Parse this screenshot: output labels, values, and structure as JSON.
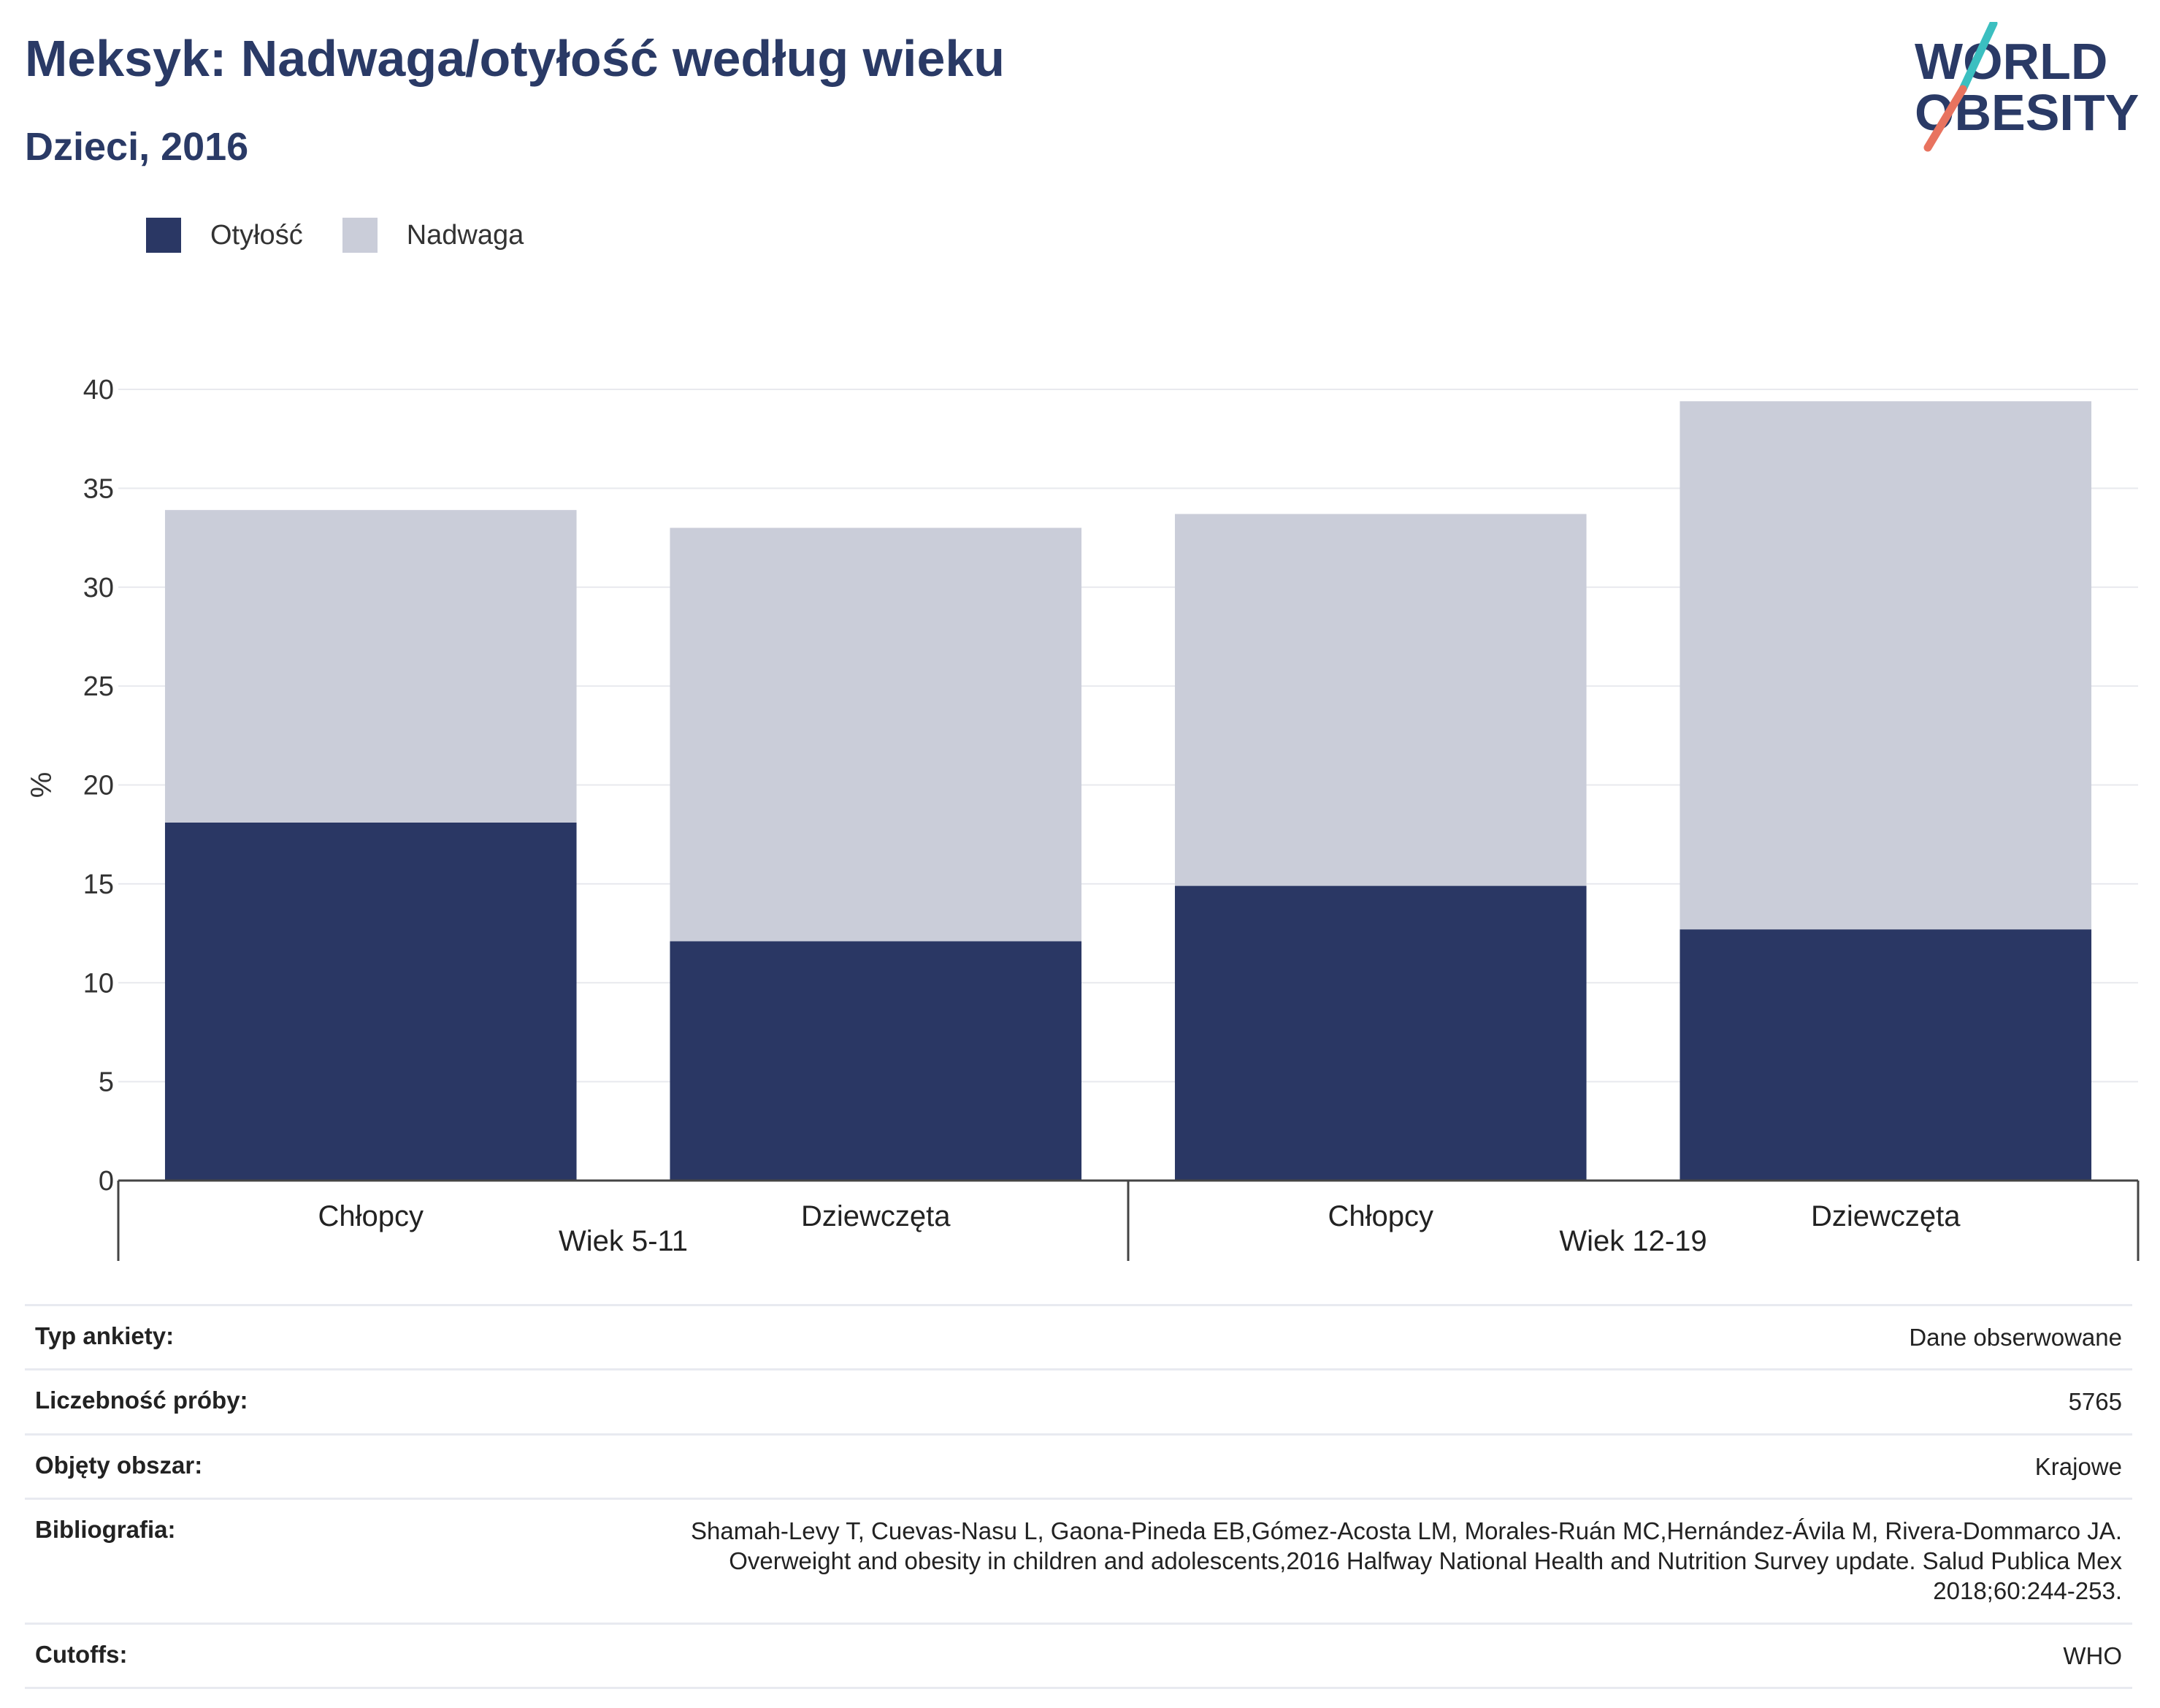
{
  "header": {
    "title": "Meksyk: Nadwaga/otyłość według wieku",
    "subtitle": "Dzieci, 2016"
  },
  "logo": {
    "line1": "WORLD",
    "line2": "OBESITY",
    "slash_colors": [
      "#3bbfc0",
      "#e8735f"
    ],
    "text_color": "#2a3a66"
  },
  "colors": {
    "obesity": "#2a3764",
    "overweight": "#cacdd9",
    "title": "#2a3a66"
  },
  "chart_data": {
    "type": "bar",
    "stacked": true,
    "ylabel": "%",
    "ylim": [
      0,
      40
    ],
    "yticks": [
      0,
      5,
      10,
      15,
      20,
      25,
      30,
      35,
      40
    ],
    "grid": true,
    "legend_position": "top-left",
    "categories": [
      "Chłopcy",
      "Dziewczęta",
      "Chłopcy",
      "Dziewczęta"
    ],
    "groups": [
      {
        "label": "Wiek 5-11",
        "span": [
          0,
          1
        ]
      },
      {
        "label": "Wiek 12-19",
        "span": [
          2,
          3
        ]
      }
    ],
    "series": [
      {
        "name": "Otyłość",
        "color": "#2a3764",
        "values": [
          18.1,
          12.1,
          14.9,
          12.7
        ]
      },
      {
        "name": "Nadwaga",
        "color": "#cacdd9",
        "values": [
          15.8,
          20.9,
          18.8,
          26.7
        ]
      }
    ]
  },
  "info": {
    "rows": [
      {
        "key": "Typ ankiety:",
        "lines": [
          "Dane obserwowane"
        ]
      },
      {
        "key": "Liczebność próby:",
        "lines": [
          "5765"
        ]
      },
      {
        "key": "Objęty obszar:",
        "lines": [
          "Krajowe"
        ]
      },
      {
        "key": "Bibliografia:",
        "lines": [
          "Shamah-Levy T, Cuevas-Nasu L, Gaona-Pineda EB,Gómez-Acosta LM, Morales-Ruán MC,Hernández-Ávila M, Rivera-Dommarco JA.",
          "Overweight and obesity in children and adolescents,2016 Halfway National Health and Nutrition Survey update. Salud Publica Mex",
          "2018;60:244-253."
        ]
      },
      {
        "key": "Cutoffs:",
        "lines": [
          "WHO"
        ]
      }
    ]
  }
}
